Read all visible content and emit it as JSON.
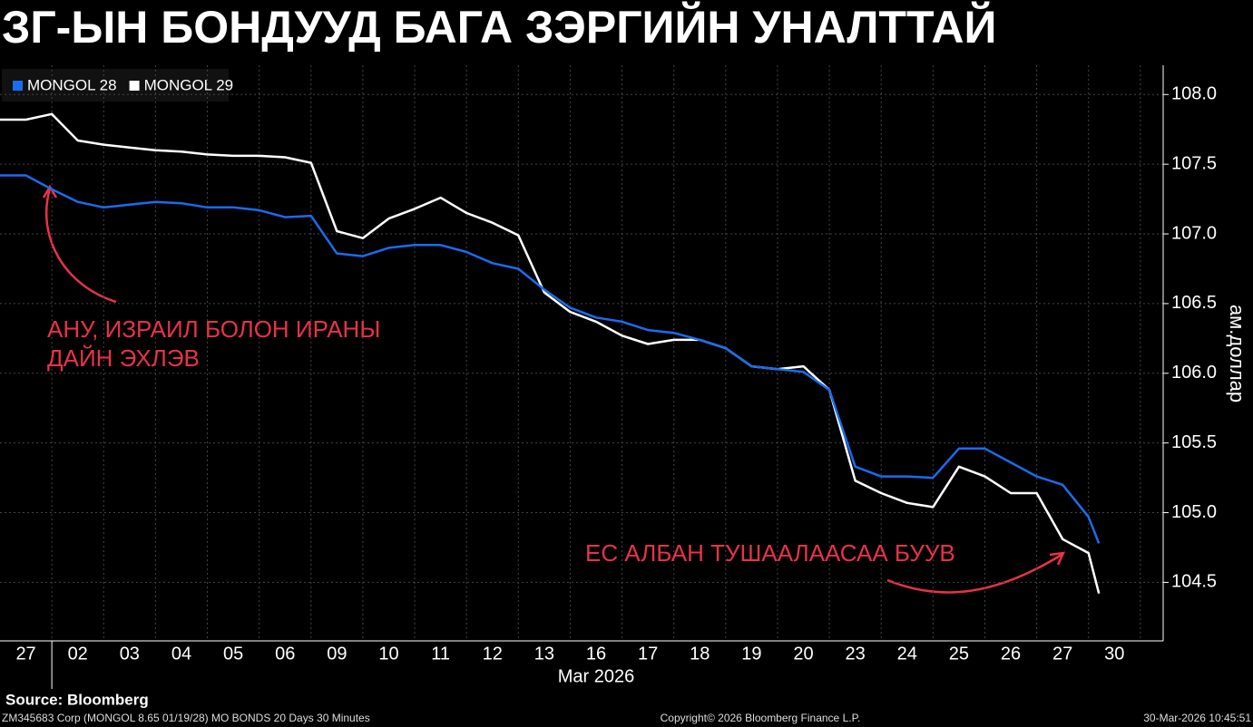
{
  "chart_data": {
    "type": "line",
    "title": "ЗГ-ЫН БОНДУУД БАГА ЗЭРГИЙН УНАЛТТАЙ",
    "categories": [
      "27",
      "02",
      "03",
      "04",
      "05",
      "06",
      "09",
      "10",
      "11",
      "12",
      "13",
      "16",
      "17",
      "18",
      "19",
      "20",
      "23",
      "24",
      "25",
      "26",
      "27",
      "30"
    ],
    "x_label": "Mar 2026",
    "y_label": "ам.доллар",
    "x": [
      -0.5,
      0,
      0.5,
      1,
      1.5,
      2,
      2.5,
      3,
      3.5,
      4,
      4.5,
      5,
      5.5,
      6,
      6.5,
      7,
      7.5,
      8,
      8.5,
      9,
      9.5,
      10,
      10.5,
      11,
      11.5,
      12,
      12.5,
      13,
      13.5,
      14,
      14.5,
      15,
      15.5,
      16,
      16.5,
      17,
      17.5,
      18,
      18.5,
      19,
      19.5,
      20,
      20.5,
      20.7
    ],
    "xlim": [
      -0.5,
      21.94
    ],
    "ylim": [
      104.08,
      108.21
    ],
    "yticks": [
      {
        "value": 104.5,
        "label": "104.5"
      },
      {
        "value": 105,
        "label": "105.0"
      },
      105.5,
      {
        "value": 106,
        "label": "106.0"
      },
      106.5,
      {
        "value": 107,
        "label": "107.0"
      },
      107.5,
      {
        "value": 108,
        "label": "108.0"
      }
    ],
    "grid": true,
    "legend": "upper left",
    "series": [
      {
        "name": "MONGOL 28",
        "color": "#1a6cf0",
        "values": [
          107.42,
          107.42,
          107.32,
          107.23,
          107.19,
          107.21,
          107.23,
          107.22,
          107.19,
          107.19,
          107.17,
          107.12,
          107.13,
          106.86,
          106.84,
          106.9,
          106.92,
          106.92,
          106.87,
          106.79,
          106.75,
          106.6,
          106.47,
          106.4,
          106.37,
          106.31,
          106.29,
          106.24,
          106.18,
          106.05,
          106.03,
          106.01,
          105.88,
          105.33,
          105.26,
          105.26,
          105.25,
          105.46,
          105.46,
          105.36,
          105.26,
          105.2,
          104.97,
          104.78
        ]
      },
      {
        "name": "MONGOL 29",
        "color": "#ffffff",
        "values": [
          107.82,
          107.82,
          107.86,
          107.67,
          107.64,
          107.62,
          107.6,
          107.59,
          107.57,
          107.56,
          107.56,
          107.55,
          107.51,
          107.02,
          106.97,
          107.11,
          107.18,
          107.26,
          107.15,
          107.08,
          106.99,
          106.58,
          106.44,
          106.37,
          106.27,
          106.21,
          106.24,
          106.24,
          106.18,
          106.05,
          106.03,
          106.05,
          105.88,
          105.23,
          105.14,
          105.07,
          105.04,
          105.33,
          105.26,
          105.14,
          105.14,
          104.81,
          104.71,
          104.42
        ]
      }
    ],
    "annotation_color": "#e8324a",
    "annotations": [
      {
        "lines": [
          "АНУ, ИЗРАИЛ БОЛОН ИРАНЫ",
          "ДАЙН ЭХЛЭВ"
        ]
      },
      {
        "lines": [
          "ЕС АЛБАН ТУШААЛААСАА БУУВ"
        ]
      }
    ],
    "source": "Source: Bloomberg",
    "footer": {
      "left": "ZM345683 Corp (MONGOL 8.65 01/19/28) MO BONDS 20 Days 30 Minutes",
      "center": "Copyright© 2026 Bloomberg Finance L.P.",
      "right": "30-Mar-2026 10:45:51"
    }
  }
}
